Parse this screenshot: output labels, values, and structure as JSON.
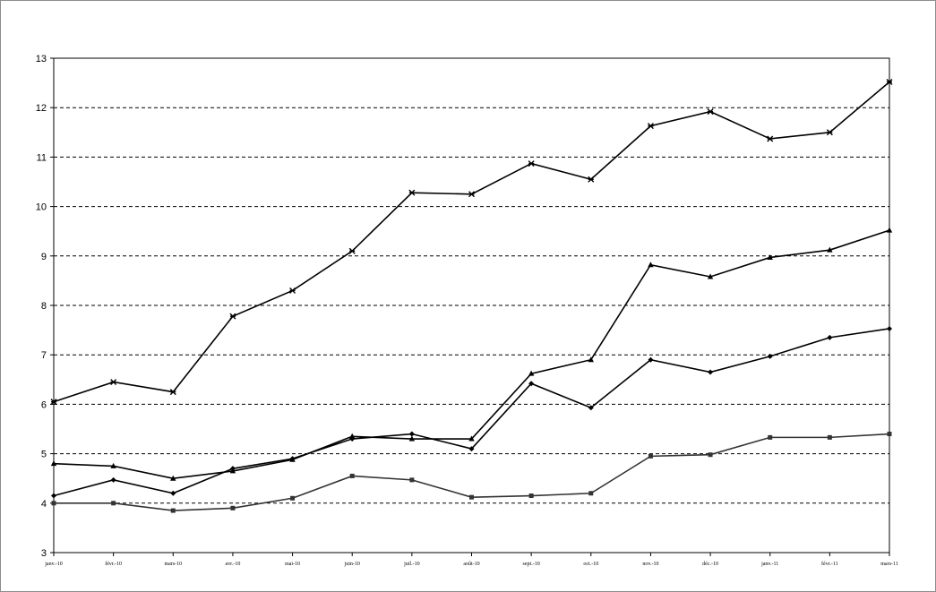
{
  "chart_data": {
    "type": "line",
    "title": "",
    "xlabel": "",
    "ylabel": "",
    "ylim": [
      3,
      13
    ],
    "yticks": [
      "3",
      "4",
      "5",
      "6",
      "7",
      "8",
      "9",
      "10",
      "11",
      "12",
      "13"
    ],
    "grid": "horizontal dashed",
    "legend": "none",
    "categories": [
      "janv.-10",
      "févr.-10",
      "mars-10",
      "avr.-10",
      "mai-10",
      "juin-10",
      "juil.-10",
      "août-10",
      "sept.-10",
      "oct.-10",
      "nov.-10",
      "déc.-10",
      "janv.-11",
      "févr.-11",
      "mars-11"
    ],
    "series": [
      {
        "marker": "star",
        "color": "#000000",
        "values": [
          6.05,
          6.45,
          6.25,
          7.78,
          8.3,
          9.1,
          10.28,
          10.25,
          10.87,
          10.55,
          11.63,
          11.92,
          11.37,
          11.5,
          12.52
        ]
      },
      {
        "marker": "triangle",
        "color": "#000000",
        "values": [
          4.8,
          4.75,
          4.5,
          4.65,
          4.88,
          5.35,
          5.3,
          5.3,
          6.62,
          6.9,
          8.82,
          8.58,
          8.97,
          9.12,
          9.52
        ]
      },
      {
        "marker": "diamond",
        "color": "#000000",
        "values": [
          4.15,
          4.47,
          4.2,
          4.7,
          4.9,
          5.3,
          5.4,
          5.1,
          6.42,
          5.93,
          6.9,
          6.65,
          6.97,
          7.35,
          7.53
        ]
      },
      {
        "marker": "square",
        "color": "#333333",
        "values": [
          4.0,
          4.0,
          3.85,
          3.9,
          4.1,
          4.55,
          4.47,
          4.12,
          4.15,
          4.2,
          4.95,
          4.98,
          5.33,
          5.33,
          5.4
        ]
      }
    ]
  }
}
